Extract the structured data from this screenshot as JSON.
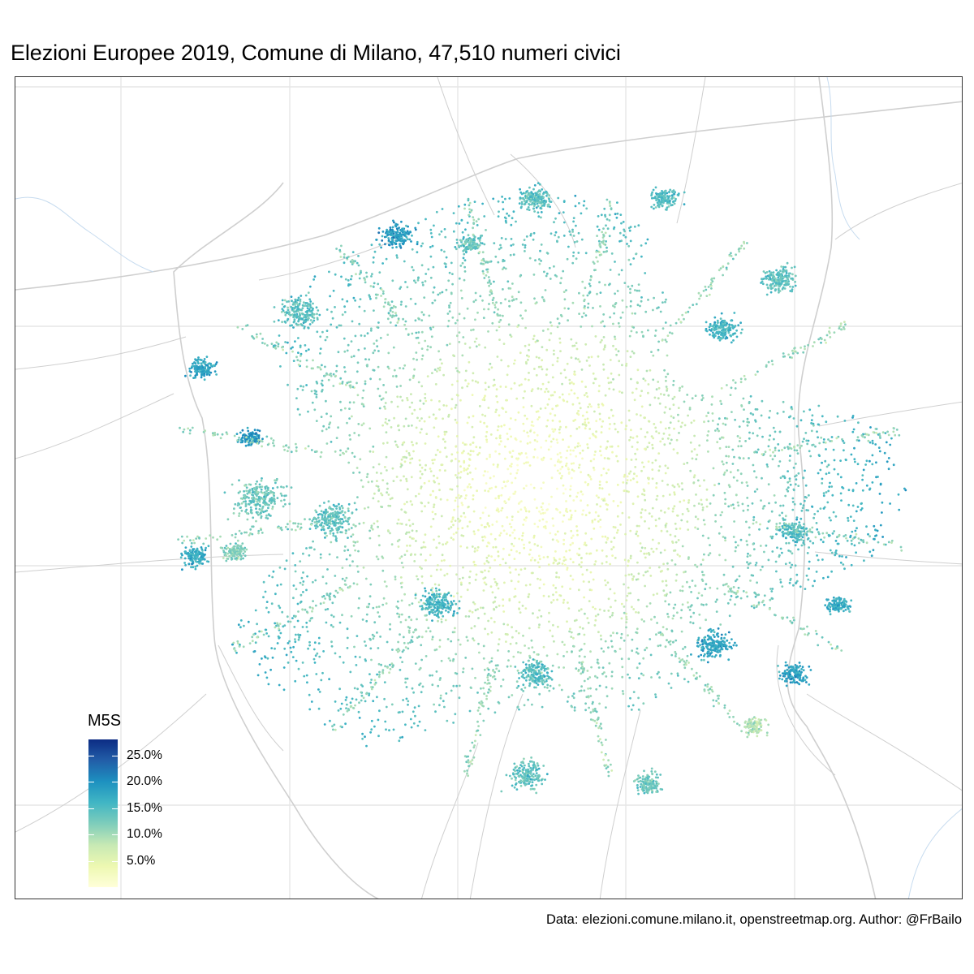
{
  "title": "Elezioni Europee 2019, Comune di Milano, 47,510 numeri civici",
  "caption": "Data: elezioni.comune.milano.it, openstreetmap.org. Author: @FrBailo",
  "legend": {
    "title": "M5S",
    "min": 0.0,
    "max": 0.28,
    "breaks": [
      {
        "value": 0.25,
        "label": "25.0%"
      },
      {
        "value": 0.2,
        "label": "20.0%"
      },
      {
        "value": 0.15,
        "label": "15.0%"
      },
      {
        "value": 0.1,
        "label": "10.0%"
      },
      {
        "value": 0.05,
        "label": "5.0%"
      }
    ],
    "palette": [
      "#ffffd9",
      "#edf8b1",
      "#c7e9b4",
      "#7fcdbb",
      "#41b6c4",
      "#1d91c0",
      "#225ea8",
      "#0c2c84"
    ]
  },
  "colors": {
    "grid": "#e6e6e6",
    "roads": "#cfcfcf",
    "water": "#c6dbef",
    "border": "#333333"
  },
  "map": {
    "point_count_total": 47510,
    "point_size": "small",
    "pattern": "low share in the city centre, higher share towards the periphery"
  }
}
